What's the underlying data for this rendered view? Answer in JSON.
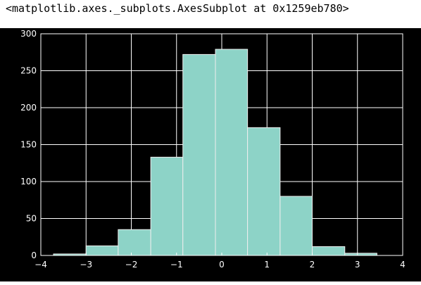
{
  "output": {
    "repr_text": "<matplotlib.axes._subplots.AxesSubplot at 0x1259eb780>"
  },
  "chart_data": {
    "type": "bar",
    "title": "",
    "xlabel": "",
    "ylabel": "",
    "xlim": [
      -4,
      4
    ],
    "ylim": [
      0,
      300
    ],
    "xticks": [
      -4,
      -3,
      -2,
      -1,
      0,
      1,
      2,
      3,
      4
    ],
    "yticks": [
      0,
      50,
      100,
      150,
      200,
      250,
      300
    ],
    "grid": true,
    "bins": [
      {
        "x0": -3.72,
        "x1": -3.0,
        "value": 2
      },
      {
        "x0": -3.0,
        "x1": -2.29,
        "value": 13
      },
      {
        "x0": -2.29,
        "x1": -1.57,
        "value": 35
      },
      {
        "x0": -1.57,
        "x1": -0.86,
        "value": 133
      },
      {
        "x0": -0.86,
        "x1": -0.14,
        "value": 272
      },
      {
        "x0": -0.14,
        "x1": 0.57,
        "value": 279
      },
      {
        "x0": 0.57,
        "x1": 1.29,
        "value": 173
      },
      {
        "x0": 1.29,
        "x1": 2.0,
        "value": 80
      },
      {
        "x0": 2.0,
        "x1": 2.72,
        "value": 12
      },
      {
        "x0": 2.72,
        "x1": 3.43,
        "value": 3
      }
    ],
    "colors": {
      "background": "#000000",
      "bar_fill": "#8dd3c7",
      "bar_edge": "#eeeeee",
      "grid": "#ffffff",
      "tick_label": "#ffffff"
    }
  }
}
